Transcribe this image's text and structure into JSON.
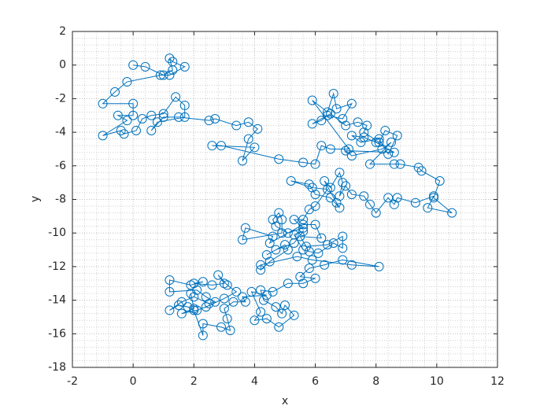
{
  "chart_data": {
    "type": "line",
    "xlabel": "x",
    "ylabel": "y",
    "xlim": [
      -2,
      12
    ],
    "ylim": [
      -18,
      2
    ],
    "xticks": [
      -2,
      0,
      2,
      4,
      6,
      8,
      10,
      12
    ],
    "yticks": [
      -18,
      -16,
      -14,
      -12,
      -10,
      -8,
      -6,
      -4,
      -2,
      0,
      2
    ],
    "grid": true,
    "minor_grid": true,
    "marker": "circle",
    "series": [
      {
        "color": "#0072bd",
        "x": [
          0,
          0.4,
          1.0,
          1.3,
          1.2,
          1.3,
          1.7,
          1.2,
          0.9,
          -0.2,
          -0.6,
          -1.0,
          0,
          0,
          -0.5,
          -0.2,
          -1.0,
          -0.4,
          -0.3,
          0.1,
          0.3,
          0.6,
          1.0,
          1.4,
          1.7,
          1.7,
          0.8,
          0.6,
          1.0,
          1.5,
          2.5,
          2.7,
          3.4,
          3.8,
          4.1,
          3.8,
          3.6,
          4.0,
          2.6,
          2.9,
          4.8,
          5.6,
          6.0,
          6.2,
          6.5,
          7.1,
          5.9,
          6.4,
          6.6,
          6.7,
          7.2,
          6.9,
          6.4,
          6.2,
          5.9,
          6.5,
          7.0,
          7.4,
          7.7,
          7.6,
          8.1,
          8.3,
          8.7,
          8.4,
          8.1,
          7.5,
          7.2,
          7.6,
          8.0,
          8.6,
          7.0,
          7.2,
          8.2,
          8.5,
          7.8,
          8.6,
          8.8,
          9.4,
          9.5,
          10.1,
          9.9,
          10.5,
          9.7,
          9.9,
          9.3,
          8.7,
          8.6,
          8.4,
          8.0,
          7.8,
          7.6,
          7.2,
          7.0,
          6.8,
          6.9,
          6.8,
          6.5,
          6.3,
          6.7,
          6.8,
          6.5,
          6.0,
          5.8,
          5.2,
          5.9,
          6.4,
          6.0,
          5.8,
          5.6,
          5.3,
          5.6,
          5.1,
          4.7,
          4.6,
          4.8,
          4.9,
          4.9,
          3.6,
          3.7,
          4.6,
          4.5,
          5.6,
          6.0,
          6.2,
          5.5,
          5.7,
          6.4,
          6.9,
          6.9,
          6.6,
          6.1,
          5.8,
          5.6,
          5.3,
          5.6,
          5.3,
          4.7,
          4.4,
          5.0,
          5.1,
          4.5,
          4.2,
          4.2,
          5.4,
          5.9,
          7.2,
          8.1,
          6.9,
          6.3,
          5.8,
          5.5,
          6.0,
          5.6,
          5.1,
          4.6,
          4.2,
          4.3,
          4.7,
          4.9,
          5.0,
          5.3,
          4.8,
          4.4,
          4.0,
          4.2,
          3.9,
          4.4,
          3.6,
          3.7,
          3.3,
          3.0,
          3.1,
          3.2,
          2.9,
          2.3,
          2.3,
          2.0,
          1.8,
          1.5,
          1.2,
          1.6,
          2.0,
          2.5,
          2.7,
          2.4,
          2.1,
          1.2,
          1.2,
          1.9,
          2.3,
          2.0,
          2.6,
          3.0,
          2.8,
          3.1,
          3.4,
          3.0,
          2.4,
          2.1,
          1.6,
          2.0,
          1.9
        ],
        "values": [
          0,
          -0.1,
          -0.6,
          -0.3,
          0.4,
          0.2,
          -0.1,
          -0.6,
          -0.6,
          -1.0,
          -1.6,
          -2.3,
          -2.3,
          -3.0,
          -3.0,
          -3.3,
          -4.2,
          -3.9,
          -4.1,
          -3.9,
          -3.2,
          -3.0,
          -2.9,
          -1.9,
          -2.4,
          -3.1,
          -3.4,
          -3.9,
          -3.1,
          -3.1,
          -3.3,
          -3.2,
          -3.6,
          -3.4,
          -3.8,
          -4.4,
          -5.7,
          -4.9,
          -4.8,
          -4.8,
          -5.6,
          -5.8,
          -5.9,
          -4.8,
          -5.0,
          -5.0,
          -2.1,
          -2.8,
          -1.7,
          -2.6,
          -2.3,
          -3.2,
          -3.0,
          -3.3,
          -3.5,
          -2.9,
          -3.6,
          -3.4,
          -3.6,
          -4.0,
          -4.6,
          -3.9,
          -4.2,
          -5.3,
          -4.4,
          -4.6,
          -4.2,
          -4.3,
          -4.6,
          -5.2,
          -5.1,
          -5.4,
          -5.0,
          -4.6,
          -5.9,
          -5.9,
          -5.9,
          -6.1,
          -6.3,
          -6.9,
          -7.9,
          -8.8,
          -8.5,
          -7.8,
          -8.2,
          -7.9,
          -8.3,
          -7.9,
          -8.8,
          -8.3,
          -7.8,
          -7.7,
          -7.2,
          -7.8,
          -7.0,
          -6.4,
          -7.3,
          -6.9,
          -8.2,
          -8.5,
          -7.9,
          -7.7,
          -7.1,
          -6.9,
          -7.3,
          -7.4,
          -8.4,
          -8.6,
          -9.2,
          -9.2,
          -9.7,
          -10.0,
          -9.6,
          -9.2,
          -8.8,
          -9.2,
          -10.0,
          -10.4,
          -9.7,
          -10.2,
          -10.6,
          -9.5,
          -9.5,
          -10.3,
          -10.2,
          -10.8,
          -10.7,
          -10.2,
          -10.9,
          -10.6,
          -11.2,
          -11.1,
          -11.0,
          -10.1,
          -9.9,
          -10.6,
          -11.0,
          -11.3,
          -10.7,
          -11.0,
          -11.7,
          -12.2,
          -11.9,
          -11.4,
          -11.6,
          -11.9,
          -12.0,
          -11.6,
          -11.9,
          -12.1,
          -12.6,
          -12.7,
          -13.0,
          -13.0,
          -13.5,
          -13.4,
          -14.0,
          -14.4,
          -14.8,
          -14.3,
          -14.9,
          -15.6,
          -15.1,
          -15.2,
          -14.7,
          -13.5,
          -13.7,
          -13.8,
          -14.1,
          -14.1,
          -14.5,
          -15.1,
          -15.8,
          -15.6,
          -15.4,
          -16.1,
          -14.6,
          -14.4,
          -14.3,
          -14.6,
          -14.1,
          -13.8,
          -14.2,
          -14.1,
          -13.8,
          -13.4,
          -13.5,
          -12.8,
          -13.1,
          -12.9,
          -13.0,
          -13.1,
          -13.0,
          -12.5,
          -13.1,
          -13.5,
          -13.9,
          -14.4,
          -14.6,
          -14.8,
          -14.5,
          -13.6
        ]
      }
    ]
  }
}
